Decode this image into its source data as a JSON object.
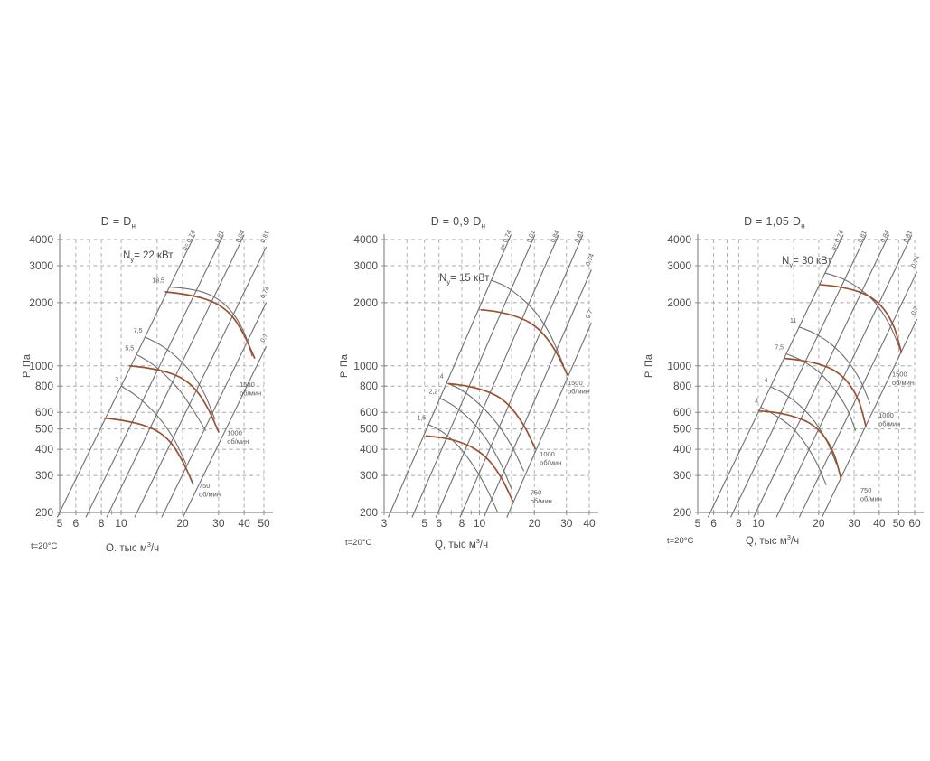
{
  "colors": {
    "background": "#ffffff",
    "grid": "#a8a8a8",
    "axis": "#8c8c8c",
    "curve_line": "#6f6f6f",
    "fan_curve": "#9a5230",
    "text": "#4c4c4c",
    "small_text": "#5a5a5a"
  },
  "chart_data": [
    {
      "type": "line",
      "title_main": "D = D",
      "title_sub": "н",
      "motor_power": {
        "prefix": "N",
        "sub": "у",
        "rest": "= 22 кВт"
      },
      "ylabel": "P, Па",
      "xlabel": {
        "pre": "Q, тыс м",
        "sup": "3",
        "post": "/ч"
      },
      "temp_label": "t=20°C",
      "x_range": [
        5,
        50
      ],
      "y_range": [
        200,
        4000
      ],
      "x_ticks": [
        5,
        6,
        8,
        10,
        20,
        30,
        40,
        50
      ],
      "x_minor_ticks": [
        7,
        9,
        15
      ],
      "y_ticks": [
        200,
        300,
        400,
        500,
        600,
        800,
        1000,
        2000,
        3000,
        4000
      ],
      "grid_x": [
        6,
        7,
        8,
        10,
        15,
        20,
        30,
        40,
        50
      ],
      "grid_y": [
        300,
        400,
        500,
        600,
        800,
        1000,
        2000,
        3000,
        4000
      ],
      "eta_lines": [
        {
          "label": "η= 0,74",
          "k": 8.0
        },
        {
          "label": "0,81",
          "k": 4.2
        },
        {
          "label": "0,84",
          "k": 2.63
        },
        {
          "label": "0,81",
          "k": 1.4
        },
        {
          "label": "0,74",
          "k": 0.76
        },
        {
          "label": "0,7",
          "k": 0.47
        }
      ],
      "fan_curves": [
        {
          "rpm": "1500",
          "unit": "об/мин",
          "label_at": [
            38,
            796
          ],
          "points": [
            [
              16.5,
              2250
            ],
            [
              20,
              2200
            ],
            [
              25,
              2100
            ],
            [
              30,
              1950
            ],
            [
              35,
              1720
            ],
            [
              40,
              1400
            ],
            [
              45,
              1090
            ]
          ]
        },
        {
          "rpm": "1000",
          "unit": "об/мин",
          "label_at": [
            33,
            466
          ],
          "points": [
            [
              11,
              1000
            ],
            [
              13.3,
              978
            ],
            [
              16.7,
              933
            ],
            [
              20,
              867
            ],
            [
              23.3,
              764
            ],
            [
              26.7,
              622
            ],
            [
              30,
              484
            ]
          ]
        },
        {
          "rpm": "750",
          "unit": "об/мин",
          "label_at": [
            24,
            261
          ],
          "points": [
            [
              8.3,
              563
            ],
            [
              10,
              550
            ],
            [
              12.5,
              525
            ],
            [
              15,
              488
            ],
            [
              17.5,
              430
            ],
            [
              20,
              350
            ],
            [
              22.5,
              273
            ]
          ]
        }
      ],
      "power_curves": [
        {
          "label": "18,5",
          "points": [
            [
              16.8,
              2380
            ],
            [
              21,
              2330
            ],
            [
              26,
              2220
            ],
            [
              31,
              2020
            ],
            [
              36,
              1730
            ],
            [
              40.5,
              1400
            ],
            [
              43.8,
              1110
            ]
          ]
        },
        {
          "label": "7,5",
          "points": [
            [
              13.1,
              1370
            ],
            [
              15.5,
              1260
            ],
            [
              18.5,
              1110
            ],
            [
              22,
              930
            ],
            [
              25.5,
              740
            ],
            [
              28.8,
              555
            ]
          ]
        },
        {
          "label": "5,5",
          "points": [
            [
              11.9,
              1130
            ],
            [
              14,
              1030
            ],
            [
              16.5,
              900
            ],
            [
              19.5,
              755
            ],
            [
              22.5,
              615
            ],
            [
              26,
              490
            ]
          ]
        },
        {
          "label": "3",
          "points": [
            [
              10,
              800
            ],
            [
              11.5,
              735
            ],
            [
              13.5,
              645
            ],
            [
              15.8,
              545
            ],
            [
              18.3,
              440
            ],
            [
              20.8,
              340
            ]
          ]
        }
      ]
    },
    {
      "type": "line",
      "title_main": "D = 0,9 D",
      "title_sub": "н",
      "motor_power": {
        "prefix": "N",
        "sub": "у",
        "rest": "= 15 кВт"
      },
      "ylabel": "P, Па",
      "xlabel": {
        "pre": "Q, тыс м",
        "sup": "3",
        "post": "/ч"
      },
      "temp_label": "t=20°C",
      "x_range": [
        3,
        40
      ],
      "y_range": [
        200,
        4000
      ],
      "x_ticks": [
        3,
        5,
        6,
        8,
        10,
        20,
        30,
        40
      ],
      "x_minor_ticks": [
        4,
        7,
        9,
        15
      ],
      "y_ticks": [
        200,
        300,
        400,
        500,
        600,
        800,
        1000,
        2000,
        3000,
        4000
      ],
      "grid_x": [
        4,
        5,
        6,
        8,
        10,
        15,
        20,
        30,
        40
      ],
      "grid_y": [
        300,
        400,
        500,
        600,
        800,
        1000,
        2000,
        3000,
        4000
      ],
      "eta_lines": [
        {
          "label": "η= 0,74",
          "k": 19.0
        },
        {
          "label": "0,81",
          "k": 10.4
        },
        {
          "label": "0,84",
          "k": 5.7
        },
        {
          "label": "0,81",
          "k": 3.1
        },
        {
          "label": "0,74",
          "k": 1.7
        },
        {
          "label": "0,7",
          "k": 0.95
        }
      ],
      "fan_curves": [
        {
          "rpm": "1500",
          "unit": "об/мин",
          "label_at": [
            30.4,
            810
          ],
          "points": [
            [
              10.2,
              1850
            ],
            [
              12.5,
              1810
            ],
            [
              15.5,
              1730
            ],
            [
              19,
              1600
            ],
            [
              22.5,
              1410
            ],
            [
              26.5,
              1150
            ],
            [
              30.3,
              906
            ]
          ]
        },
        {
          "rpm": "1000",
          "unit": "об/мин",
          "label_at": [
            21.4,
            370
          ],
          "points": [
            [
              6.8,
              822
            ],
            [
              8.3,
              804
            ],
            [
              10.3,
              769
            ],
            [
              12.7,
              711
            ],
            [
              15,
              627
            ],
            [
              17.7,
              511
            ],
            [
              20.2,
              403
            ]
          ]
        },
        {
          "rpm": "750",
          "unit": "об/мин",
          "label_at": [
            19,
            243
          ],
          "points": [
            [
              5.1,
              463
            ],
            [
              6.3,
              453
            ],
            [
              7.8,
              433
            ],
            [
              9.5,
              400
            ],
            [
              11.3,
              353
            ],
            [
              13.3,
              288
            ],
            [
              15.2,
              227
            ]
          ]
        }
      ],
      "power_curves": [
        {
          "label": "",
          "points": [
            [
              11.6,
              2560
            ],
            [
              14,
              2380
            ],
            [
              17,
              2100
            ],
            [
              20.5,
              1780
            ],
            [
              24.5,
              1400
            ],
            [
              29,
              1000
            ]
          ]
        },
        {
          "label": "4",
          "points": [
            [
              6.57,
              830
            ],
            [
              8,
              765
            ],
            [
              10,
              655
            ],
            [
              12.5,
              530
            ],
            [
              15,
              415
            ],
            [
              17.5,
              315
            ]
          ]
        },
        {
          "label": "2,2",
          "points": [
            [
              6.1,
              700
            ],
            [
              7.3,
              640
            ],
            [
              9,
              548
            ],
            [
              11,
              442
            ],
            [
              13,
              345
            ],
            [
              15,
              258
            ]
          ]
        },
        {
          "label": "1,5",
          "points": [
            [
              5.26,
              525
            ],
            [
              6.3,
              482
            ],
            [
              7.7,
              412
            ],
            [
              9.3,
              332
            ],
            [
              11,
              258
            ],
            [
              12.6,
              200
            ]
          ]
        }
      ]
    },
    {
      "type": "line",
      "title_main": "D = 1,05 D",
      "title_sub": "н",
      "motor_power": {
        "prefix": "N",
        "sub": "у",
        "rest": "= 30 кВт"
      },
      "ylabel": "P, Па",
      "xlabel": {
        "pre": "Q, тыс м",
        "sup": "3",
        "post": "/ч"
      },
      "temp_label": "t=20°C",
      "x_range": [
        5,
        60
      ],
      "y_range": [
        200,
        4000
      ],
      "x_ticks": [
        5,
        6,
        8,
        10,
        20,
        30,
        40,
        50,
        60
      ],
      "x_minor_ticks": [
        7,
        9,
        15
      ],
      "y_ticks": [
        200,
        300,
        400,
        500,
        600,
        800,
        1000,
        2000,
        3000,
        4000
      ],
      "grid_x": [
        6,
        7,
        8,
        10,
        15,
        20,
        30,
        40,
        50,
        60
      ],
      "grid_y": [
        300,
        400,
        500,
        600,
        800,
        1000,
        2000,
        3000,
        4000
      ],
      "eta_lines": [
        {
          "label": "η= 0,74",
          "k": 6.0
        },
        {
          "label": "0,81",
          "k": 3.56
        },
        {
          "label": "0,84",
          "k": 2.11
        },
        {
          "label": "0,81",
          "k": 1.25
        },
        {
          "label": "0,74",
          "k": 0.74
        },
        {
          "label": "0,7",
          "k": 0.44
        }
      ],
      "fan_curves": [
        {
          "rpm": "1500",
          "unit": "об/мин",
          "label_at": [
            46.3,
            888
          ],
          "points": [
            [
              20.2,
              2440
            ],
            [
              24.5,
              2390
            ],
            [
              30,
              2290
            ],
            [
              36,
              2130
            ],
            [
              42,
              1870
            ],
            [
              47.5,
              1520
            ],
            [
              51.5,
              1160
            ]
          ]
        },
        {
          "rpm": "1000",
          "unit": "об/мин",
          "label_at": [
            39.7,
            568
          ],
          "points": [
            [
              13.5,
              1085
            ],
            [
              16.3,
              1062
            ],
            [
              20,
              1018
            ],
            [
              24,
              947
            ],
            [
              28,
              831
            ],
            [
              31.7,
              676
            ],
            [
              34.3,
              516
            ]
          ]
        },
        {
          "rpm": "750",
          "unit": "об/мин",
          "label_at": [
            32.2,
            249
          ],
          "points": [
            [
              10.1,
              610
            ],
            [
              12.3,
              598
            ],
            [
              15,
              573
            ],
            [
              18,
              533
            ],
            [
              21,
              468
            ],
            [
              23.8,
              380
            ],
            [
              25.8,
              290
            ]
          ]
        }
      ],
      "power_curves": [
        {
          "label": "",
          "points": [
            [
              21.5,
              2770
            ],
            [
              26,
              2610
            ],
            [
              31.5,
              2350
            ],
            [
              38,
              2010
            ],
            [
              45,
              1570
            ],
            [
              51,
              1190
            ]
          ]
        },
        {
          "label": "11",
          "points": [
            [
              16,
              1530
            ],
            [
              19,
              1430
            ],
            [
              23,
              1270
            ],
            [
              27.5,
              1070
            ],
            [
              32,
              860
            ],
            [
              36,
              660
            ]
          ]
        },
        {
          "label": "7,5",
          "points": [
            [
              13.8,
              1140
            ],
            [
              16.5,
              1060
            ],
            [
              20,
              935
            ],
            [
              23.5,
              790
            ],
            [
              27.5,
              630
            ],
            [
              30.5,
              490
            ]
          ]
        },
        {
          "label": "4",
          "points": [
            [
              11.5,
              795
            ],
            [
              13.5,
              735
            ],
            [
              16,
              650
            ],
            [
              19,
              545
            ],
            [
              22,
              435
            ],
            [
              24.5,
              340
            ]
          ]
        },
        {
          "label": "3",
          "points": [
            [
              10.3,
              635
            ],
            [
              12,
              585
            ],
            [
              14.5,
              515
            ],
            [
              17,
              430
            ],
            [
              19.5,
              345
            ],
            [
              21.8,
              270
            ]
          ]
        }
      ]
    }
  ]
}
